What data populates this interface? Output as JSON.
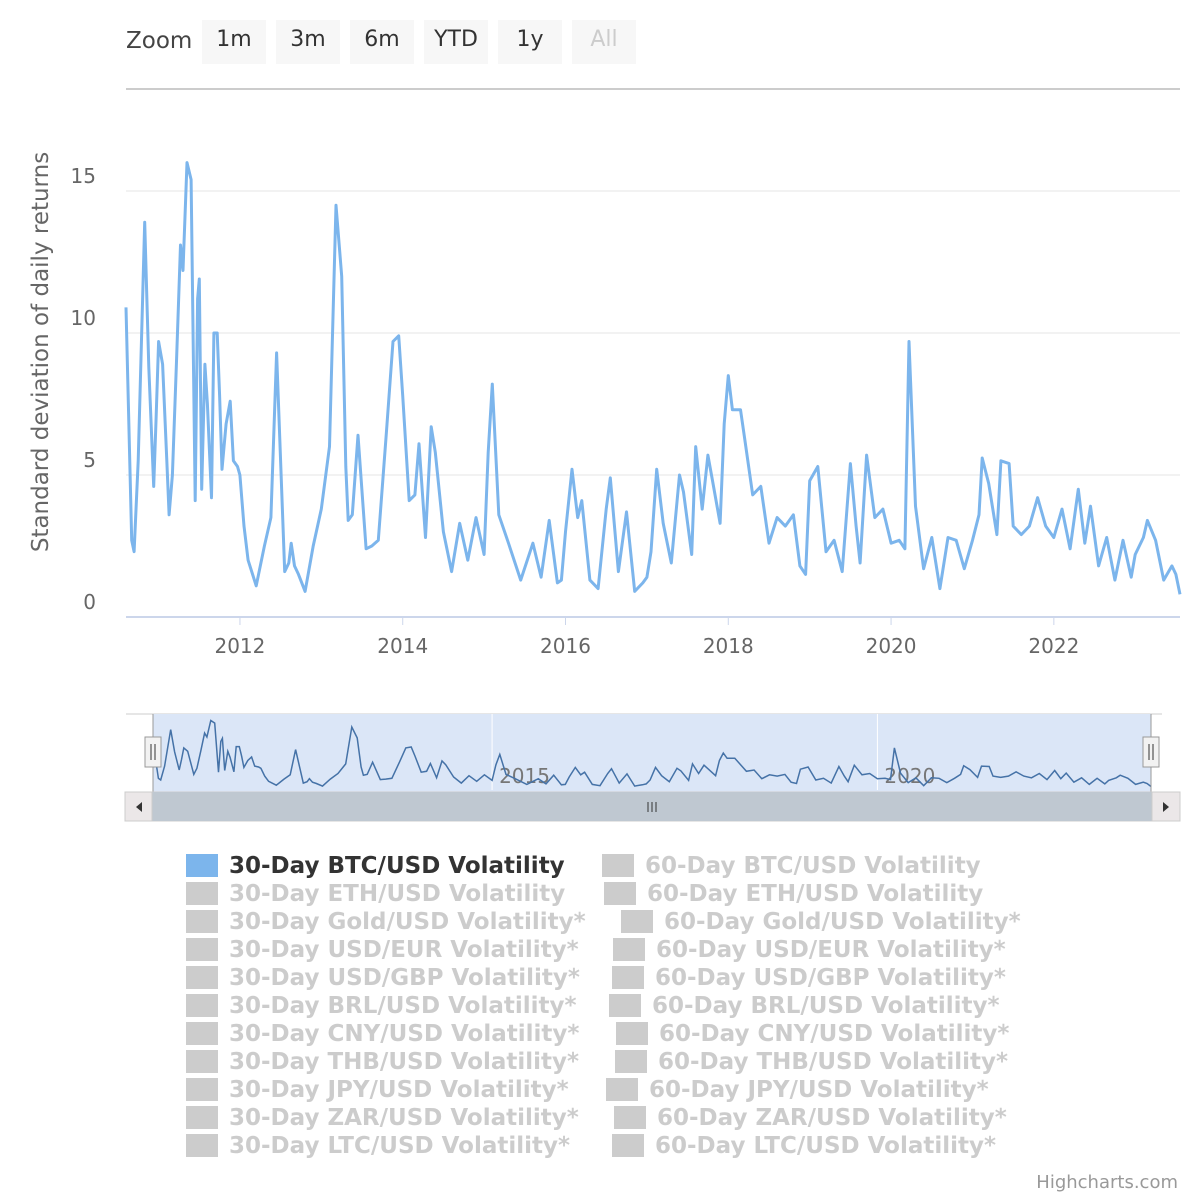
{
  "zoom": {
    "label": "Zoom",
    "buttons": [
      {
        "label": "1m",
        "enabled": true
      },
      {
        "label": "3m",
        "enabled": true
      },
      {
        "label": "6m",
        "enabled": true
      },
      {
        "label": "YTD",
        "enabled": true
      },
      {
        "label": "1y",
        "enabled": true
      },
      {
        "label": "All",
        "enabled": false
      }
    ]
  },
  "credits": "Highcharts.com",
  "colors": {
    "series": "#7cb5ec",
    "navigator_line": "#4572a7",
    "grid": "#e6e6e6",
    "disabled": "#cccccc"
  },
  "chart_data": {
    "type": "line",
    "title": "",
    "xlabel": "",
    "ylabel": "Standard deviation of daily returns",
    "xlim": [
      2010.6,
      2023.55
    ],
    "ylim": [
      0,
      17.5
    ],
    "y_ticks": [
      0,
      5,
      10,
      15
    ],
    "x_ticks": [
      2012,
      2014,
      2016,
      2018,
      2020,
      2022
    ],
    "navigator_ticks": [
      2015,
      2020
    ],
    "grid": true,
    "legend_placement": "bottom",
    "series": [
      {
        "name": "30-Day BTC/USD Volatility",
        "visible": true,
        "x": [
          2010.6,
          2010.67,
          2010.7,
          2010.75,
          2010.83,
          2010.88,
          2010.94,
          2010.97,
          2011.0,
          2011.05,
          2011.1,
          2011.13,
          2011.17,
          2011.22,
          2011.27,
          2011.3,
          2011.35,
          2011.4,
          2011.45,
          2011.48,
          2011.5,
          2011.53,
          2011.57,
          2011.6,
          2011.65,
          2011.68,
          2011.72,
          2011.75,
          2011.78,
          2011.83,
          2011.88,
          2011.92,
          2011.97,
          2012.0,
          2012.05,
          2012.1,
          2012.2,
          2012.3,
          2012.38,
          2012.45,
          2012.55,
          2012.6,
          2012.63,
          2012.67,
          2012.72,
          2012.8,
          2012.9,
          2013.0,
          2013.1,
          2013.18,
          2013.25,
          2013.3,
          2013.33,
          2013.38,
          2013.45,
          2013.55,
          2013.62,
          2013.7,
          2013.8,
          2013.88,
          2013.95,
          2014.0,
          2014.08,
          2014.15,
          2014.2,
          2014.28,
          2014.35,
          2014.4,
          2014.5,
          2014.6,
          2014.7,
          2014.8,
          2014.9,
          2015.0,
          2015.05,
          2015.1,
          2015.18,
          2015.3,
          2015.45,
          2015.6,
          2015.7,
          2015.8,
          2015.9,
          2015.95,
          2016.0,
          2016.08,
          2016.15,
          2016.2,
          2016.3,
          2016.4,
          2016.5,
          2016.55,
          2016.65,
          2016.75,
          2016.85,
          2016.95,
          2017.0,
          2017.05,
          2017.12,
          2017.2,
          2017.3,
          2017.4,
          2017.45,
          2017.55,
          2017.6,
          2017.68,
          2017.75,
          2017.8,
          2017.9,
          2017.95,
          2018.0,
          2018.05,
          2018.15,
          2018.2,
          2018.3,
          2018.4,
          2018.5,
          2018.6,
          2018.7,
          2018.8,
          2018.88,
          2018.95,
          2019.0,
          2019.1,
          2019.2,
          2019.3,
          2019.4,
          2019.5,
          2019.57,
          2019.62,
          2019.7,
          2019.8,
          2019.9,
          2020.0,
          2020.1,
          2020.17,
          2020.22,
          2020.3,
          2020.4,
          2020.5,
          2020.6,
          2020.7,
          2020.8,
          2020.9,
          2021.0,
          2021.08,
          2021.12,
          2021.2,
          2021.3,
          2021.35,
          2021.45,
          2021.5,
          2021.6,
          2021.7,
          2021.8,
          2021.9,
          2022.0,
          2022.1,
          2022.2,
          2022.3,
          2022.38,
          2022.45,
          2022.55,
          2022.65,
          2022.75,
          2022.85,
          2022.95,
          2023.0,
          2023.1,
          2023.15,
          2023.25,
          2023.35,
          2023.45,
          2023.5,
          2023.55
        ],
        "values": [
          10.9,
          2.7,
          2.3,
          5.5,
          13.9,
          8.8,
          4.6,
          7.0,
          9.7,
          8.9,
          5.6,
          3.6,
          5.0,
          9.0,
          13.1,
          12.2,
          16.0,
          15.4,
          4.1,
          11.2,
          11.9,
          4.5,
          8.9,
          7.5,
          4.2,
          10.0,
          10.0,
          7.8,
          5.2,
          6.8,
          7.6,
          5.5,
          5.3,
          5.0,
          3.2,
          2.0,
          1.1,
          2.5,
          3.5,
          9.3,
          1.6,
          1.9,
          2.6,
          1.8,
          1.5,
          0.9,
          2.5,
          3.8,
          6.0,
          14.5,
          12.0,
          5.3,
          3.4,
          3.6,
          6.4,
          2.4,
          2.5,
          2.7,
          6.5,
          9.7,
          9.9,
          7.8,
          4.1,
          4.3,
          6.1,
          2.8,
          6.7,
          5.8,
          3.0,
          1.6,
          3.3,
          2.0,
          3.5,
          2.2,
          5.8,
          8.2,
          3.6,
          2.6,
          1.3,
          2.6,
          1.4,
          3.4,
          1.2,
          1.3,
          3.0,
          5.2,
          3.5,
          4.1,
          1.3,
          1.0,
          3.8,
          4.9,
          1.6,
          3.7,
          0.9,
          1.2,
          1.4,
          2.3,
          5.2,
          3.3,
          1.9,
          5.0,
          4.4,
          2.2,
          6.0,
          3.8,
          5.7,
          4.9,
          3.3,
          6.8,
          8.5,
          7.3,
          7.3,
          6.3,
          4.3,
          4.6,
          2.6,
          3.5,
          3.2,
          3.6,
          1.8,
          1.5,
          4.8,
          5.3,
          2.3,
          2.7,
          1.6,
          5.4,
          3.2,
          1.9,
          5.7,
          3.5,
          3.8,
          2.6,
          2.7,
          2.4,
          9.7,
          3.9,
          1.7,
          2.8,
          1.0,
          2.8,
          2.7,
          1.7,
          2.7,
          3.6,
          5.6,
          4.7,
          2.9,
          5.5,
          5.4,
          3.2,
          2.9,
          3.2,
          4.2,
          3.2,
          2.8,
          3.8,
          2.4,
          4.5,
          2.6,
          3.9,
          1.8,
          2.8,
          1.3,
          2.7,
          1.4,
          2.2,
          2.8,
          3.4,
          2.7,
          1.3,
          1.8,
          1.5,
          0.8
        ]
      },
      {
        "name": "60-Day BTC/USD Volatility",
        "visible": false
      },
      {
        "name": "30-Day ETH/USD Volatility",
        "visible": false
      },
      {
        "name": "60-Day ETH/USD Volatility",
        "visible": false
      },
      {
        "name": "30-Day Gold/USD Volatility*",
        "visible": false
      },
      {
        "name": "60-Day Gold/USD Volatility*",
        "visible": false
      },
      {
        "name": "30-Day USD/EUR Volatility*",
        "visible": false
      },
      {
        "name": "60-Day USD/EUR Volatility*",
        "visible": false
      },
      {
        "name": "30-Day USD/GBP Volatility*",
        "visible": false
      },
      {
        "name": "60-Day USD/GBP Volatility*",
        "visible": false
      },
      {
        "name": "30-Day BRL/USD Volatility*",
        "visible": false
      },
      {
        "name": "60-Day BRL/USD Volatility*",
        "visible": false
      },
      {
        "name": "30-Day CNY/USD Volatility*",
        "visible": false
      },
      {
        "name": "60-Day CNY/USD Volatility*",
        "visible": false
      },
      {
        "name": "30-Day THB/USD Volatility*",
        "visible": false
      },
      {
        "name": "60-Day THB/USD Volatility*",
        "visible": false
      },
      {
        "name": "30-Day JPY/USD Volatility*",
        "visible": false
      },
      {
        "name": "60-Day JPY/USD Volatility*",
        "visible": false
      },
      {
        "name": "30-Day ZAR/USD Volatility*",
        "visible": false
      },
      {
        "name": "60-Day ZAR/USD Volatility*",
        "visible": false
      },
      {
        "name": "30-Day LTC/USD Volatility*",
        "visible": false
      },
      {
        "name": "60-Day LTC/USD Volatility*",
        "visible": false
      }
    ]
  }
}
